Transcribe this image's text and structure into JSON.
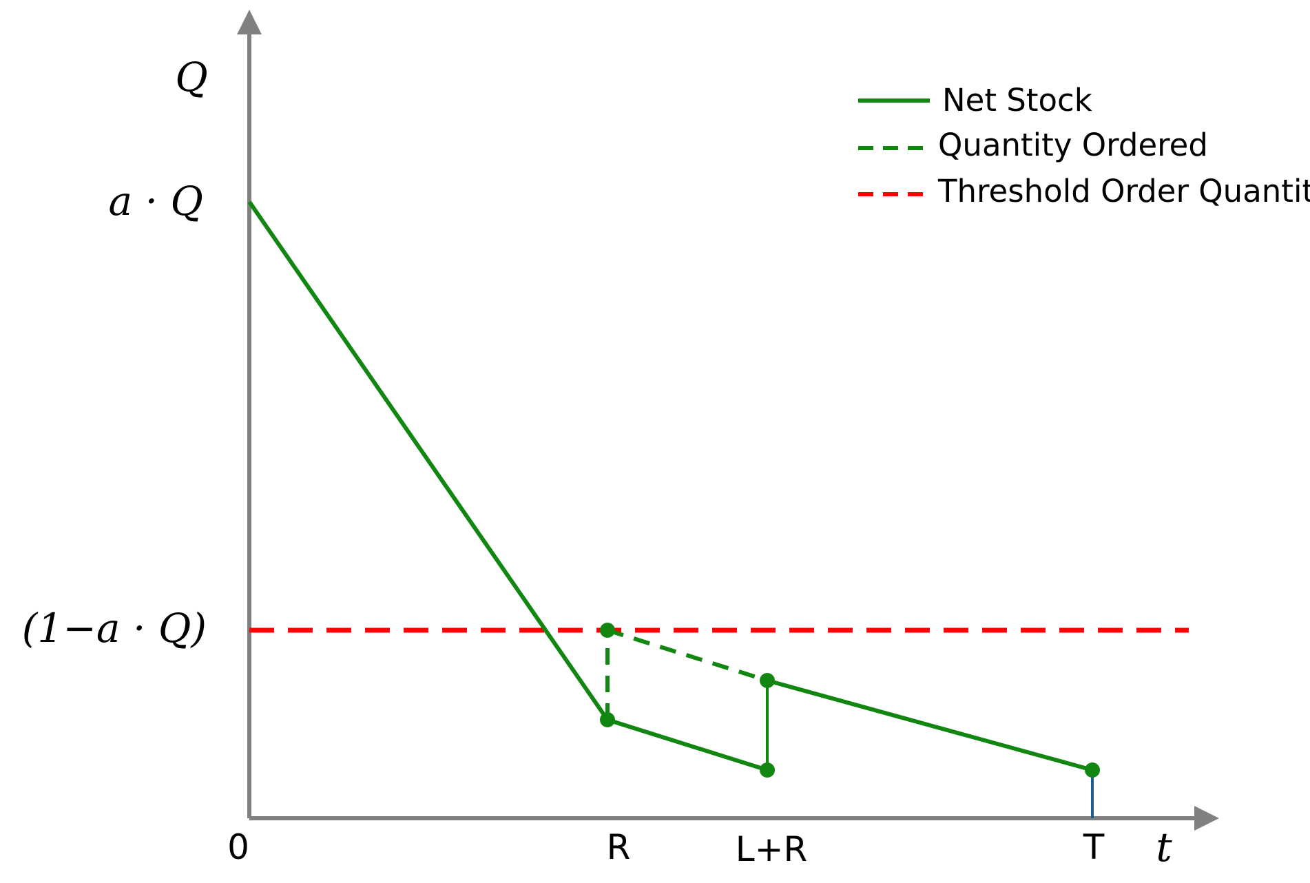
{
  "chart_data": {
    "type": "line",
    "title": "",
    "xlabel": "t",
    "ylabel": "Q",
    "grid": false,
    "legend_position": "top-right",
    "x_ticks": [
      "0",
      "R",
      "L+R",
      "T"
    ],
    "y_ticks": [
      "a · Q",
      "(1−a · Q)"
    ],
    "x": [
      0,
      1,
      1.44,
      2.35
    ],
    "colors": {
      "net_stock": "#118611",
      "quantity_ordered": "#118611",
      "threshold": "#ff0000",
      "end_marker": "#1a5e8c",
      "axis": "#808080"
    },
    "series": [
      {
        "name": "Net Stock",
        "style": "solid",
        "points": [
          {
            "x": "0",
            "y": "a · Q"
          },
          {
            "x": "R",
            "y": 0.21
          },
          {
            "x": "L+R",
            "y": 0.08
          },
          {
            "x": "L+R",
            "y": 0.2
          },
          {
            "x": "T",
            "y": 0.08
          }
        ]
      },
      {
        "name": "Quantity Ordered",
        "style": "dashed",
        "points": [
          {
            "x": "R",
            "y": 0.21
          },
          {
            "x": "R",
            "y": "(1−a · Q)"
          },
          {
            "x": "L+R",
            "y": 0.2
          }
        ]
      },
      {
        "name": "Threshold Order Quantity",
        "style": "dashed",
        "value": "(1−a · Q)"
      }
    ]
  }
}
